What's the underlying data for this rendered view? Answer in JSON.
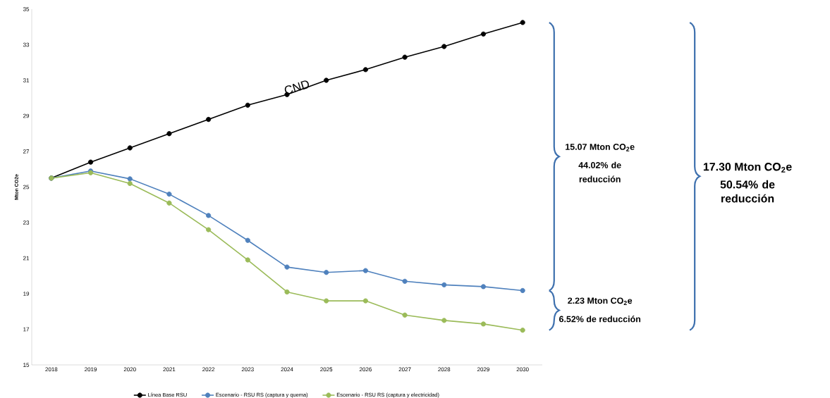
{
  "chart_data": {
    "type": "line",
    "ylabel": "Mton CO2e",
    "categories": [
      "2018",
      "2019",
      "2020",
      "2021",
      "2022",
      "2023",
      "2024",
      "2025",
      "2026",
      "2027",
      "2028",
      "2029",
      "2030"
    ],
    "series": [
      {
        "name": "Línea Base RSU",
        "color": "#000000",
        "values": [
          25.5,
          26.4,
          27.2,
          28.0,
          28.8,
          29.6,
          30.2,
          31.0,
          31.6,
          32.3,
          32.9,
          33.6,
          34.25
        ]
      },
      {
        "name": "Escenario - RSU RS (captura y quema)",
        "color": "#4f81bd",
        "values": [
          25.5,
          25.9,
          25.46,
          24.6,
          23.4,
          22.0,
          20.5,
          20.2,
          20.3,
          19.7,
          19.5,
          19.4,
          19.18
        ]
      },
      {
        "name": "Escenario - RSU RS (captura y electricidad)",
        "color": "#9bbb59",
        "values": [
          25.5,
          25.8,
          25.2,
          24.1,
          22.6,
          20.9,
          19.1,
          18.6,
          18.6,
          17.8,
          17.5,
          17.3,
          16.95
        ]
      }
    ],
    "ylim": [
      15,
      35
    ],
    "yticks": [
      15,
      17,
      19,
      21,
      23,
      25,
      27,
      29,
      31,
      33,
      35
    ],
    "grid": false,
    "legend": "bottom",
    "marker": "circle",
    "line_style": "solid",
    "annotations": [
      "CND",
      "15.07  Mton CO$_{2}$e",
      "44.02%  de reducción",
      "2.23  Mton CO$_{2}$e",
      "6.52%  de reducción",
      "17.30  Mton CO$_{2}$e",
      "50.54%  de reducción"
    ]
  }
}
